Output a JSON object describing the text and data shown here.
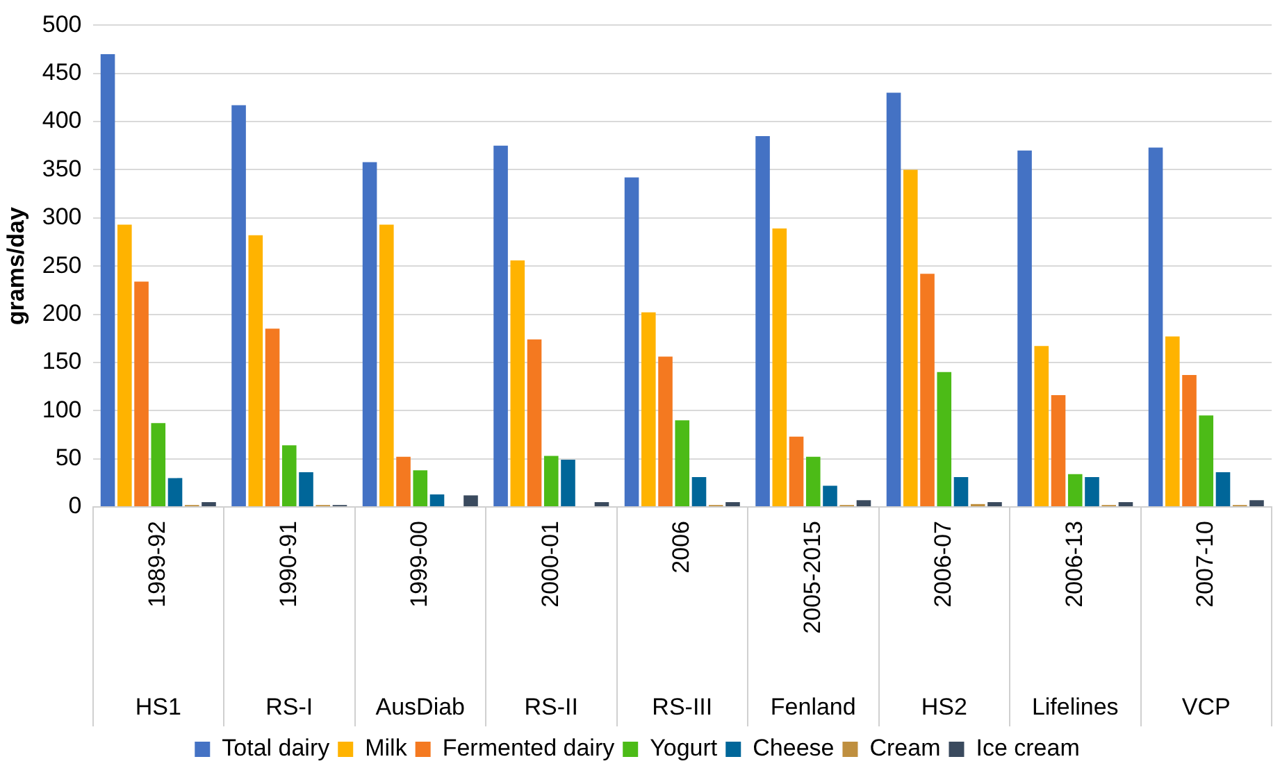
{
  "chart_data": {
    "type": "bar",
    "ylabel": "grams/day",
    "categories": [
      "1989-92",
      "1990-91",
      "1999-00",
      "2000-01",
      "2006",
      "2005-2015",
      "2006-07",
      "2006-13",
      "2007-10"
    ],
    "annotations": [
      "HS1",
      "RS-I",
      "AusDiab",
      "RS-II",
      "RS-III",
      "Fenland",
      "HS2",
      "Lifelines",
      "VCP"
    ],
    "series": [
      {
        "name": "Total dairy",
        "color": "#4472c4",
        "values": [
          470,
          417,
          358,
          375,
          342,
          385,
          430,
          370,
          373
        ]
      },
      {
        "name": "Milk",
        "color": "#ffb300",
        "values": [
          293,
          282,
          293,
          256,
          202,
          289,
          350,
          167,
          177
        ]
      },
      {
        "name": "Fermented dairy",
        "color": "#f47920",
        "values": [
          234,
          185,
          52,
          174,
          156,
          73,
          242,
          116,
          137
        ]
      },
      {
        "name": "Yogurt",
        "color": "#4cbb17",
        "values": [
          87,
          64,
          38,
          53,
          90,
          52,
          140,
          34,
          95
        ]
      },
      {
        "name": "Cheese",
        "color": "#006699",
        "values": [
          30,
          36,
          13,
          49,
          31,
          22,
          31,
          31,
          36
        ]
      },
      {
        "name": "Cream",
        "color": "#bf8f3f",
        "values": [
          2,
          2,
          null,
          null,
          2,
          2,
          3,
          2,
          2
        ]
      },
      {
        "name": "Ice cream",
        "color": "#3a4a5e",
        "values": [
          5,
          2,
          12,
          5,
          5,
          7,
          5,
          5,
          7
        ]
      }
    ],
    "ylim": [
      0,
      500
    ],
    "yticks": [
      0,
      50,
      100,
      150,
      200,
      250,
      300,
      350,
      400,
      450,
      500
    ],
    "grid": "y",
    "legend": "bottom"
  }
}
